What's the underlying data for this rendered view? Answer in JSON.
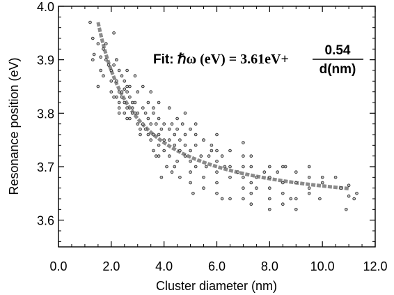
{
  "chart_data": {
    "type": "scatter",
    "title": "",
    "xlabel": "Cluster diameter (nm)",
    "ylabel": "Resonance position  (eV)",
    "xlim": [
      0.0,
      12.0
    ],
    "ylim": [
      3.55,
      4.0
    ],
    "x_ticks": [
      0.0,
      2.0,
      4.0,
      6.0,
      8.0,
      10.0,
      12.0
    ],
    "x_tick_labels": [
      "0.0",
      "2.0",
      "4.0",
      "6.0",
      "8.0",
      "10.0",
      "12.0"
    ],
    "y_ticks": [
      3.6,
      3.7,
      3.8,
      3.9,
      4.0
    ],
    "y_tick_labels": [
      "3.6",
      "3.7",
      "3.8",
      "3.9",
      "4.0"
    ],
    "grid": false,
    "fit": {
      "label_prefix": "Fit: ",
      "hbar_omega": "ℏω",
      "unit": " (eV) = 3.61eV+",
      "numerator": "0.54",
      "denominator": "d(nm)",
      "offset": 3.61,
      "coefficient": 0.54,
      "x_range": [
        1.5,
        11.0
      ],
      "color": "#8a8a8a"
    },
    "marker_color": "#bdbdbd",
    "marker_edge_color": "#222222",
    "points": [
      [
        1.2,
        3.97
      ],
      [
        1.3,
        3.94
      ],
      [
        1.35,
        3.91
      ],
      [
        1.3,
        3.9
      ],
      [
        1.5,
        3.93
      ],
      [
        1.6,
        3.905
      ],
      [
        1.7,
        3.92
      ],
      [
        1.8,
        3.9
      ],
      [
        1.9,
        3.89
      ],
      [
        2.0,
        3.88
      ],
      [
        1.7,
        3.87
      ],
      [
        2.0,
        3.86
      ],
      [
        2.1,
        3.89
      ],
      [
        2.2,
        3.9
      ],
      [
        2.3,
        3.88
      ],
      [
        2.4,
        3.87
      ],
      [
        2.2,
        3.86
      ],
      [
        2.5,
        3.86
      ],
      [
        2.6,
        3.85
      ],
      [
        2.7,
        3.85
      ],
      [
        2.3,
        3.84
      ],
      [
        2.4,
        3.84
      ],
      [
        2.5,
        3.845
      ],
      [
        2.6,
        3.84
      ],
      [
        2.0,
        3.84
      ],
      [
        2.1,
        3.83
      ],
      [
        2.2,
        3.83
      ],
      [
        2.4,
        3.83
      ],
      [
        2.7,
        3.83
      ],
      [
        2.8,
        3.82
      ],
      [
        2.9,
        3.82
      ],
      [
        2.3,
        3.82
      ],
      [
        2.5,
        3.82
      ],
      [
        2.6,
        3.81
      ],
      [
        2.8,
        3.81
      ],
      [
        2.3,
        3.81
      ],
      [
        2.5,
        3.8
      ],
      [
        2.9,
        3.8
      ],
      [
        3.0,
        3.8
      ],
      [
        3.2,
        3.81
      ],
      [
        2.6,
        3.79
      ],
      [
        2.7,
        3.79
      ],
      [
        2.8,
        3.8
      ],
      [
        3.3,
        3.8
      ],
      [
        3.4,
        3.79
      ],
      [
        3.6,
        3.8
      ],
      [
        3.0,
        3.78
      ],
      [
        3.1,
        3.77
      ],
      [
        3.2,
        3.78
      ],
      [
        3.3,
        3.77
      ],
      [
        3.5,
        3.78
      ],
      [
        3.7,
        3.78
      ],
      [
        3.8,
        3.79
      ],
      [
        4.0,
        3.78
      ],
      [
        3.4,
        3.76
      ],
      [
        3.6,
        3.76
      ],
      [
        3.8,
        3.76
      ],
      [
        3.9,
        3.77
      ],
      [
        4.2,
        3.77
      ],
      [
        4.3,
        3.78
      ],
      [
        4.5,
        3.77
      ],
      [
        4.7,
        3.78
      ],
      [
        3.1,
        3.76
      ],
      [
        3.5,
        3.75
      ],
      [
        3.8,
        3.74
      ],
      [
        4.0,
        3.75
      ],
      [
        4.2,
        3.75
      ],
      [
        4.4,
        3.76
      ],
      [
        4.6,
        3.75
      ],
      [
        4.8,
        3.76
      ],
      [
        5.0,
        3.77
      ],
      [
        3.6,
        3.73
      ],
      [
        4.0,
        3.73
      ],
      [
        4.4,
        3.74
      ],
      [
        4.6,
        3.73
      ],
      [
        4.8,
        3.74
      ],
      [
        5.0,
        3.73
      ],
      [
        5.2,
        3.74
      ],
      [
        5.5,
        3.75
      ],
      [
        3.7,
        3.72
      ],
      [
        4.2,
        3.72
      ],
      [
        4.8,
        3.72
      ],
      [
        5.0,
        3.71
      ],
      [
        5.4,
        3.72
      ],
      [
        5.8,
        3.73
      ],
      [
        6.0,
        3.73
      ],
      [
        4.1,
        3.7
      ],
      [
        4.5,
        3.71
      ],
      [
        5.2,
        3.7
      ],
      [
        5.6,
        3.7
      ],
      [
        6.0,
        3.71
      ],
      [
        6.2,
        3.72
      ],
      [
        6.5,
        3.73
      ],
      [
        4.3,
        3.69
      ],
      [
        5.0,
        3.69
      ],
      [
        5.5,
        3.68
      ],
      [
        6.0,
        3.69
      ],
      [
        6.5,
        3.7
      ],
      [
        7.0,
        3.7
      ],
      [
        7.3,
        3.72
      ],
      [
        5.0,
        3.67
      ],
      [
        5.5,
        3.66
      ],
      [
        6.0,
        3.67
      ],
      [
        6.5,
        3.68
      ],
      [
        7.0,
        3.68
      ],
      [
        7.3,
        3.7
      ],
      [
        7.8,
        3.69
      ],
      [
        8.0,
        3.7
      ],
      [
        6.0,
        3.65
      ],
      [
        6.5,
        3.64
      ],
      [
        7.0,
        3.66
      ],
      [
        7.3,
        3.67
      ],
      [
        7.5,
        3.68
      ],
      [
        8.0,
        3.68
      ],
      [
        8.3,
        3.69
      ],
      [
        8.5,
        3.7
      ],
      [
        7.0,
        3.64
      ],
      [
        7.3,
        3.65
      ],
      [
        7.5,
        3.66
      ],
      [
        8.0,
        3.66
      ],
      [
        8.5,
        3.67
      ],
      [
        9.0,
        3.69
      ],
      [
        9.5,
        3.7
      ],
      [
        7.3,
        3.63
      ],
      [
        8.0,
        3.64
      ],
      [
        8.5,
        3.65
      ],
      [
        9.0,
        3.67
      ],
      [
        9.5,
        3.68
      ],
      [
        8.0,
        3.62
      ],
      [
        8.5,
        3.63
      ],
      [
        9.0,
        3.64
      ],
      [
        9.5,
        3.66
      ],
      [
        10.0,
        3.68
      ],
      [
        5.5,
        3.75
      ],
      [
        6.0,
        3.76
      ],
      [
        5.8,
        3.74
      ],
      [
        5.2,
        3.76
      ],
      [
        4.8,
        3.8
      ],
      [
        4.2,
        3.81
      ],
      [
        3.8,
        3.82
      ],
      [
        3.5,
        3.84
      ],
      [
        3.2,
        3.85
      ],
      [
        2.9,
        3.87
      ],
      [
        2.6,
        3.88
      ],
      [
        3.0,
        3.84
      ],
      [
        3.4,
        3.82
      ],
      [
        3.6,
        3.81
      ],
      [
        4.5,
        3.79
      ],
      [
        5.2,
        3.78
      ],
      [
        5.7,
        3.72
      ],
      [
        6.3,
        3.7
      ],
      [
        6.8,
        3.69
      ],
      [
        7.0,
        3.72
      ],
      [
        7.0,
        3.745
      ],
      [
        8.6,
        3.7
      ],
      [
        9.5,
        3.65
      ],
      [
        10.0,
        3.67
      ],
      [
        10.5,
        3.68
      ],
      [
        11.0,
        3.665
      ],
      [
        10.9,
        3.62
      ],
      [
        11.0,
        3.645
      ],
      [
        10.7,
        3.66
      ],
      [
        11.2,
        3.64
      ],
      [
        11.3,
        3.65
      ],
      [
        2.1,
        3.95
      ],
      [
        1.8,
        3.93
      ],
      [
        2.2,
        3.9
      ],
      [
        1.6,
        3.88
      ],
      [
        1.5,
        3.85
      ],
      [
        2.3,
        3.8
      ],
      [
        3.8,
        3.72
      ],
      [
        4.4,
        3.7
      ],
      [
        3.9,
        3.68
      ],
      [
        4.6,
        3.68
      ],
      [
        5.1,
        3.65
      ],
      [
        6.2,
        3.64
      ],
      [
        8.8,
        3.64
      ],
      [
        9.0,
        3.62
      ],
      [
        9.9,
        3.64
      ]
    ]
  }
}
